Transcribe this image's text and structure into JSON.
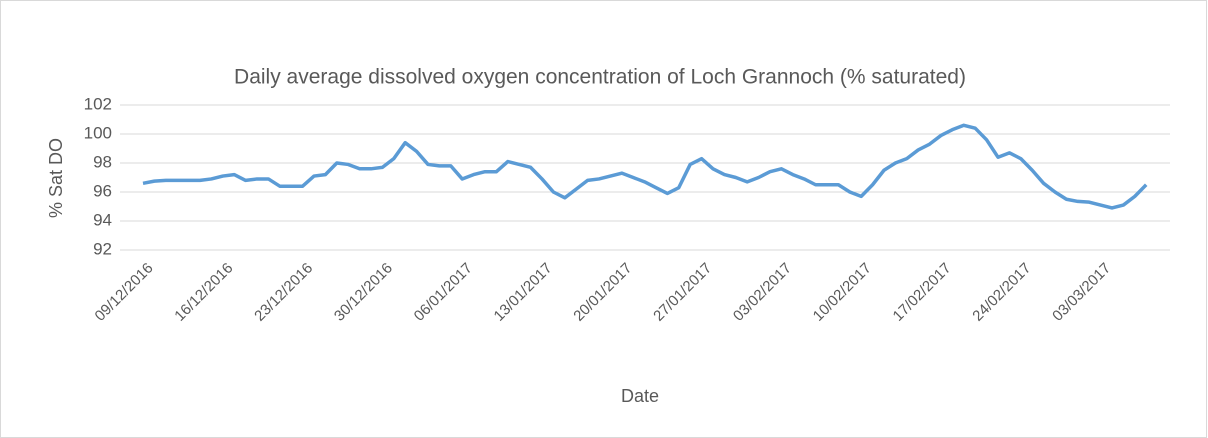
{
  "chart_data": {
    "type": "line",
    "title": "Daily average dissolved oxygen concentration of Loch Grannoch (% saturated)",
    "x_label": "Date",
    "y_label": "% Sat DO",
    "categories": [
      "09/12/2016",
      null,
      null,
      null,
      null,
      null,
      null,
      "16/12/2016",
      null,
      null,
      null,
      null,
      null,
      null,
      "23/12/2016",
      null,
      null,
      null,
      null,
      null,
      null,
      "30/12/2016",
      null,
      null,
      null,
      null,
      null,
      null,
      "06/01/2017",
      null,
      null,
      null,
      null,
      null,
      null,
      "13/01/2017",
      null,
      null,
      null,
      null,
      null,
      null,
      "20/01/2017",
      null,
      null,
      null,
      null,
      null,
      null,
      "27/01/2017",
      null,
      null,
      null,
      null,
      null,
      null,
      "03/02/2017",
      null,
      null,
      null,
      null,
      null,
      null,
      "10/02/2017",
      null,
      null,
      null,
      null,
      null,
      null,
      "17/02/2017",
      null,
      null,
      null,
      null,
      null,
      null,
      "24/02/2017",
      null,
      null,
      null,
      null,
      null,
      null,
      "03/03/2017",
      null,
      null,
      null,
      null
    ],
    "series": [
      {
        "name": "% Sat DO",
        "color": "#5b9bd5",
        "values": [
          96.6,
          96.75,
          96.8,
          96.8,
          96.8,
          96.8,
          96.9,
          97.1,
          97.2,
          96.8,
          96.9,
          96.9,
          96.4,
          96.4,
          96.4,
          97.1,
          97.2,
          98.0,
          97.9,
          97.6,
          97.6,
          97.7,
          98.3,
          99.4,
          98.8,
          97.9,
          97.8,
          97.8,
          96.9,
          97.2,
          97.4,
          97.4,
          98.1,
          97.9,
          97.7,
          96.9,
          96.0,
          95.6,
          96.2,
          96.8,
          96.9,
          97.1,
          97.3,
          97.0,
          96.7,
          96.3,
          95.9,
          96.3,
          97.9,
          98.3,
          97.6,
          97.2,
          97.0,
          96.7,
          97.0,
          97.4,
          97.6,
          97.2,
          96.9,
          96.5,
          96.5,
          96.5,
          96.0,
          95.7,
          96.5,
          97.5,
          98.0,
          98.3,
          98.9,
          99.3,
          99.9,
          100.3,
          100.6,
          100.4,
          99.6,
          98.4,
          98.7,
          98.3,
          97.5,
          96.6,
          96.0,
          95.5,
          95.35,
          95.3,
          95.1,
          94.9,
          95.1,
          95.7,
          96.5
        ]
      }
    ],
    "ylim": [
      92,
      102
    ],
    "yticks": [
      92,
      94,
      96,
      98,
      100,
      102
    ],
    "grid": true
  }
}
